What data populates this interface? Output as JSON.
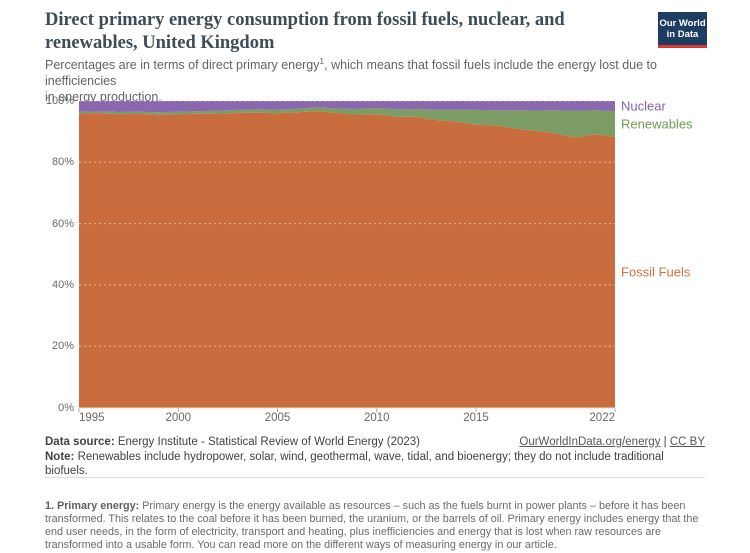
{
  "header": {
    "title_lines": [
      "Direct primary energy consumption from fossil fuels, nuclear, and",
      "renewables, United Kingdom"
    ],
    "subtitle": {
      "line1_pre": "Percentages are in terms of direct primary energy",
      "line1_sup": "1",
      "line1_post": ", which means that fossil fuels include the energy lost due to inefficiencies",
      "line2": "in energy production."
    }
  },
  "logo": {
    "line1": "Our World",
    "line2": "in Data",
    "bg_color": "#1d3d63",
    "accent_color": "#d93a32"
  },
  "chart_data": {
    "type": "area",
    "stacked": true,
    "title": "Direct primary energy consumption from fossil fuels, nuclear, and renewables, United Kingdom",
    "xlabel": "",
    "ylabel": "",
    "unit": "%",
    "ylim": [
      0,
      100
    ],
    "grid": "dotted-horizontal",
    "legend_position": "right-of-plot",
    "x": [
      1995,
      1996,
      1997,
      1998,
      1999,
      2000,
      2001,
      2002,
      2003,
      2004,
      2005,
      2006,
      2007,
      2008,
      2009,
      2010,
      2011,
      2012,
      2013,
      2014,
      2015,
      2016,
      2017,
      2018,
      2019,
      2020,
      2021,
      2022
    ],
    "series": [
      {
        "name": "Fossil Fuels",
        "color": "#ca6d3e",
        "label_color": "#d0713f",
        "values": [
          95.9,
          96.0,
          95.7,
          95.8,
          95.5,
          95.6,
          95.9,
          95.9,
          96.1,
          96.2,
          96.0,
          96.3,
          96.7,
          96.1,
          95.6,
          95.7,
          94.9,
          94.8,
          93.8,
          93.2,
          92.3,
          92.0,
          91.0,
          90.3,
          89.5,
          88.1,
          89.2,
          88.3
        ]
      },
      {
        "name": "Renewables",
        "color": "#7b9c64",
        "label_color": "#6e9e51",
        "values": [
          0.6,
          0.6,
          0.7,
          0.7,
          0.8,
          0.9,
          0.8,
          0.9,
          1.0,
          1.1,
          1.2,
          1.2,
          1.2,
          1.5,
          1.8,
          2.0,
          2.4,
          2.6,
          3.4,
          4.0,
          4.8,
          5.0,
          6.0,
          6.6,
          7.5,
          8.7,
          7.8,
          8.4
        ]
      },
      {
        "name": "Nuclear",
        "color": "#8b67af",
        "label_color": "#8862ad",
        "values": [
          3.5,
          3.4,
          3.6,
          3.5,
          3.7,
          3.5,
          3.3,
          3.2,
          2.9,
          2.7,
          2.8,
          2.5,
          2.1,
          2.4,
          2.6,
          2.3,
          2.7,
          2.6,
          2.8,
          2.8,
          2.9,
          3.0,
          3.0,
          3.1,
          3.0,
          3.2,
          3.0,
          3.3
        ]
      }
    ],
    "ytick_values": [
      0,
      20,
      40,
      60,
      80,
      100
    ],
    "ytick_labels": [
      "0%",
      "20%",
      "40%",
      "60%",
      "80%",
      "100%"
    ],
    "xticks": [
      {
        "year": 1995,
        "label": "1995",
        "align": "left"
      },
      {
        "year": 2000,
        "label": "2000",
        "align": "center"
      },
      {
        "year": 2005,
        "label": "2005",
        "align": "center"
      },
      {
        "year": 2010,
        "label": "2010",
        "align": "center"
      },
      {
        "year": 2015,
        "label": "2015",
        "align": "center"
      },
      {
        "year": 2022,
        "label": "2022",
        "align": "right"
      }
    ]
  },
  "footer": {
    "source_label": "Data source:",
    "source_text": " Energy Institute - Statistical Review of World Energy (2023)",
    "link_energy": "OurWorldInData.org/energy",
    "link_separator": " | ",
    "link_license": "CC BY",
    "note_label": "Note:",
    "note_text": " Renewables include hydropower, solar, wind, geothermal, wave, tidal, and bioenergy; they do not include traditional biofuels."
  },
  "footnote": {
    "lead": "1. Primary energy:",
    "body": " Primary energy is the energy available as resources – such as the fuels burnt in power plants – before it has been transformed. This relates to the coal before it has been burned, the uranium, or the barrels of oil. Primary energy includes energy that the end user needs, in the form of electricity, transport and heating, plus inefficiencies and energy that is lost when raw resources are transformed into a usable form. You can read more on the different ways of measuring energy in our article."
  }
}
